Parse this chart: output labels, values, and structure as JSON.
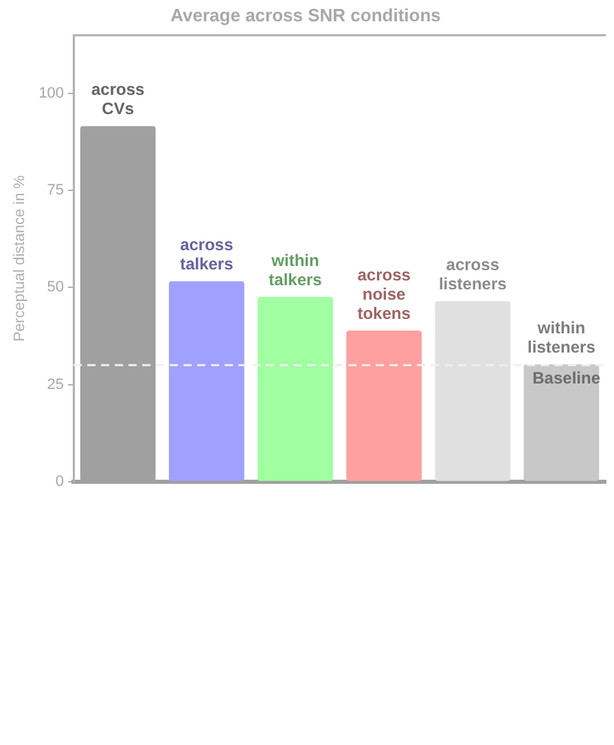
{
  "chart_data": {
    "type": "bar",
    "title": "Average across SNR conditions",
    "ylabel": "Perceptual distance in %",
    "categories": [
      "across CVs",
      "across talkers",
      "within talkers",
      "across noise tokens",
      "across listeners",
      "within listeners"
    ],
    "values": [
      91.6,
      51.6,
      47.6,
      38.9,
      46.5,
      30.2
    ],
    "colors": [
      "#a0a0a0",
      "#a0a0ff",
      "#a0ffa0",
      "#ffa0a0",
      "#e0e0e0",
      "#c8c8c8"
    ],
    "ylim": [
      0,
      115
    ],
    "yticks": [
      0,
      25,
      50,
      75,
      100
    ],
    "grid": false,
    "tick_labels": "y",
    "ref_lines": [
      {
        "axis": "y",
        "value": 30,
        "label": "Baseline",
        "color": "#f0f0f0",
        "line_style": "dashed"
      }
    ]
  }
}
